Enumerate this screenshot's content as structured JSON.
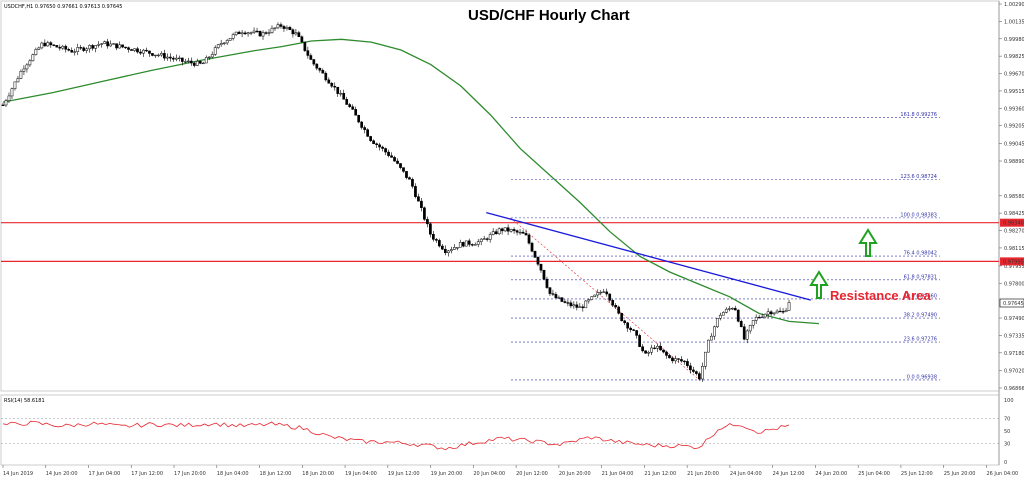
{
  "chart_data": {
    "type": "candlestick",
    "title": "USD/CHF Hourly Chart",
    "header": "USDCHF,H1  0.97650 0.97661 0.97613 0.97645",
    "annotation": "Resistance Area",
    "ylim": [
      0.96866,
      1.0029
    ],
    "y_ticks": [
      "1.00290",
      "1.00135",
      "0.99980",
      "0.99825",
      "0.99670",
      "0.99515",
      "0.99360",
      "0.99205",
      "0.99045",
      "0.98890",
      "0.98580",
      "0.98425",
      "0.98270",
      "0.98115",
      "0.97955",
      "0.97800",
      "0.97490",
      "0.97335",
      "0.97180",
      "0.97020",
      "0.96866"
    ],
    "x_ticks": [
      "14 Jun 2019",
      "14 Jun 20:00",
      "17 Jun 04:00",
      "17 Jun 12:00",
      "17 Jun 20:00",
      "18 Jun 04:00",
      "18 Jun 12:00",
      "18 Jun 20:00",
      "19 Jun 04:00",
      "19 Jun 12:00",
      "19 Jun 20:00",
      "20 Jun 04:00",
      "20 Jun 12:00",
      "20 Jun 20:00",
      "21 Jun 04:00",
      "21 Jun 12:00",
      "21 Jun 20:00",
      "24 Jun 04:00",
      "24 Jun 12:00",
      "24 Jun 20:00",
      "25 Jun 04:00",
      "25 Jun 12:00",
      "25 Jun 20:00",
      "26 Jun 04:00"
    ],
    "price_label": "0.97645",
    "horizontal_levels": [
      {
        "price": 0.9834,
        "label": "0.98340",
        "color": "#e8262e"
      },
      {
        "price": 0.97995,
        "label": "0.97995",
        "color": "#e8262e"
      }
    ],
    "fib_levels": [
      {
        "label": "161.8 0.99276",
        "price": 0.99276
      },
      {
        "label": "123.6 0.98724",
        "price": 0.98724
      },
      {
        "label": "100.0 0.98383",
        "price": 0.98383
      },
      {
        "label": "76.4 0.98042",
        "price": 0.98042
      },
      {
        "label": "61.8 0.97831",
        "price": 0.97831
      },
      {
        "label": "50.0 0.97660",
        "price": 0.9766
      },
      {
        "label": "38.2 0.97490",
        "price": 0.9749
      },
      {
        "label": "23.6 0.97276",
        "price": 0.97276
      },
      {
        "label": "0.0 0.96938",
        "price": 0.96938
      }
    ],
    "trendline": {
      "start": [
        0.4857,
        0.9843
      ],
      "end": [
        0.8119,
        0.9765
      ],
      "color": "#1a1adc"
    },
    "moving_average": {
      "color": "#2e8b2e",
      "points": [
        [
          0.0,
          0.99415
        ],
        [
          0.05,
          0.995
        ],
        [
          0.1,
          0.996
        ],
        [
          0.15,
          0.997
        ],
        [
          0.2,
          0.9979
        ],
        [
          0.25,
          0.9987
        ],
        [
          0.28,
          0.9991
        ],
        [
          0.31,
          0.9996
        ],
        [
          0.34,
          0.99975
        ],
        [
          0.37,
          0.9995
        ],
        [
          0.4,
          0.9988
        ],
        [
          0.43,
          0.9975
        ],
        [
          0.46,
          0.9956
        ],
        [
          0.49,
          0.993
        ],
        [
          0.52,
          0.99
        ],
        [
          0.55,
          0.9876
        ],
        [
          0.58,
          0.9852
        ],
        [
          0.61,
          0.9826
        ],
        [
          0.64,
          0.9804
        ],
        [
          0.67,
          0.979
        ],
        [
          0.7,
          0.9779
        ],
        [
          0.73,
          0.9768
        ],
        [
          0.76,
          0.9753
        ],
        [
          0.79,
          0.9746
        ],
        [
          0.82,
          0.9744
        ]
      ]
    },
    "price_path": [
      [
        0.0,
        0.9939
      ],
      [
        0.02,
        0.9972
      ],
      [
        0.04,
        0.9994
      ],
      [
        0.07,
        0.9987
      ],
      [
        0.1,
        0.9994
      ],
      [
        0.13,
        0.9989
      ],
      [
        0.16,
        0.9983
      ],
      [
        0.18,
        0.9978
      ],
      [
        0.2,
        0.9975
      ],
      [
        0.22,
        0.9995
      ],
      [
        0.24,
        1.0005
      ],
      [
        0.26,
        1.0002
      ],
      [
        0.28,
        1.001
      ],
      [
        0.295,
        1.0002
      ],
      [
        0.31,
        0.9978
      ],
      [
        0.33,
        0.9958
      ],
      [
        0.35,
        0.9935
      ],
      [
        0.37,
        0.9908
      ],
      [
        0.39,
        0.9893
      ],
      [
        0.41,
        0.987
      ],
      [
        0.43,
        0.9823
      ],
      [
        0.445,
        0.9809
      ],
      [
        0.46,
        0.9815
      ],
      [
        0.48,
        0.9817
      ],
      [
        0.5,
        0.9828
      ],
      [
        0.51,
        0.9827
      ],
      [
        0.525,
        0.9823
      ],
      [
        0.54,
        0.9794
      ],
      [
        0.55,
        0.977
      ],
      [
        0.565,
        0.9762
      ],
      [
        0.58,
        0.9758
      ],
      [
        0.59,
        0.9765
      ],
      [
        0.605,
        0.9775
      ],
      [
        0.62,
        0.975
      ],
      [
        0.635,
        0.9735
      ],
      [
        0.645,
        0.9715
      ],
      [
        0.655,
        0.9724
      ],
      [
        0.67,
        0.9713
      ],
      [
        0.685,
        0.971
      ],
      [
        0.7,
        0.9696
      ],
      [
        0.71,
        0.9731
      ],
      [
        0.72,
        0.9752
      ],
      [
        0.735,
        0.976
      ],
      [
        0.745,
        0.973
      ],
      [
        0.755,
        0.9748
      ],
      [
        0.77,
        0.9755
      ],
      [
        0.785,
        0.9754
      ],
      [
        0.79,
        0.9764
      ]
    ],
    "rsi": {
      "label": "RSI(14) 58.6181",
      "ylim": [
        0,
        100
      ],
      "ticks": [
        "100",
        "70",
        "50",
        "30",
        "0"
      ],
      "levels": [
        70,
        30
      ],
      "color": "#e8262e",
      "points": [
        [
          0.0,
          60
        ],
        [
          0.03,
          63
        ],
        [
          0.06,
          58
        ],
        [
          0.09,
          62
        ],
        [
          0.12,
          57
        ],
        [
          0.15,
          61
        ],
        [
          0.18,
          59
        ],
        [
          0.21,
          62
        ],
        [
          0.24,
          58
        ],
        [
          0.27,
          61
        ],
        [
          0.3,
          55
        ],
        [
          0.33,
          40
        ],
        [
          0.36,
          33
        ],
        [
          0.39,
          32
        ],
        [
          0.42,
          28
        ],
        [
          0.445,
          22
        ],
        [
          0.47,
          30
        ],
        [
          0.5,
          38
        ],
        [
          0.53,
          34
        ],
        [
          0.56,
          28
        ],
        [
          0.59,
          40
        ],
        [
          0.62,
          32
        ],
        [
          0.65,
          27
        ],
        [
          0.68,
          26
        ],
        [
          0.7,
          24
        ],
        [
          0.72,
          55
        ],
        [
          0.74,
          62
        ],
        [
          0.76,
          48
        ],
        [
          0.78,
          55
        ],
        [
          0.79,
          58
        ]
      ]
    }
  }
}
